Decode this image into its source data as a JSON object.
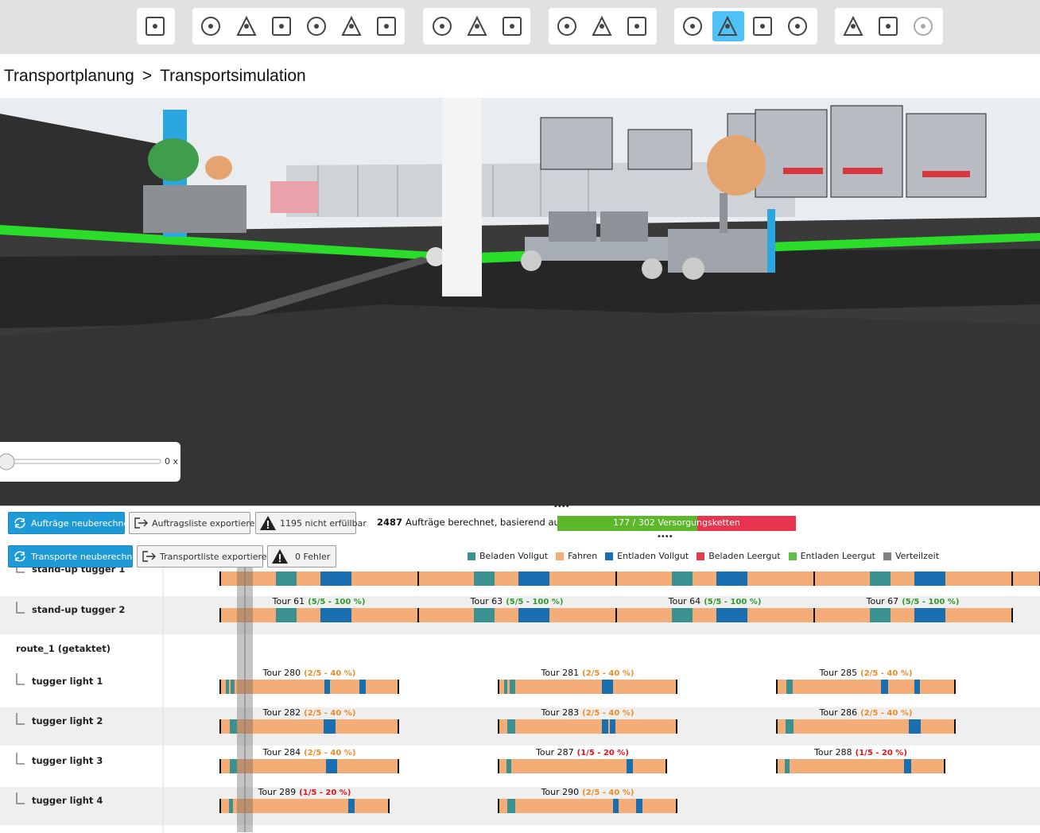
{
  "breadcrumb": [
    "Transportplanung",
    ">",
    "Transportsimulation"
  ],
  "speed_label": "0 x",
  "buttons": {
    "recalc_orders": "Aufträge neuberechnen",
    "export_orders": "Auftragsliste exportieren",
    "unfulfillable": "1195 nicht erfüllbar",
    "recalc_transports": "Transporte neuberechnen",
    "export_transports": "Transportliste exportieren",
    "errors": "0 Fehler"
  },
  "summary": {
    "count": "2487",
    "text": "Aufträge berechnet, basierend auf:",
    "progress": {
      "label": "177 / 302 Versorgungsketten",
      "done": 177,
      "total": 302
    }
  },
  "legend": [
    {
      "name": "Beladen Vollgut",
      "color": "#3a9190"
    },
    {
      "name": "Fahren",
      "color": "#f5ad78"
    },
    {
      "name": "Entladen Vollgut",
      "color": "#1a6fb0"
    },
    {
      "name": "Beladen Leergut",
      "color": "#e23d4a"
    },
    {
      "name": "Entladen Leergut",
      "color": "#5fc14b"
    },
    {
      "name": "Verteilzeit",
      "color": "#7f7f7f"
    }
  ],
  "gantt": {
    "rows_top": [
      {
        "name": "stand-up tugger 1"
      },
      {
        "name": "stand-up tugger 2",
        "tours": [
          {
            "label": "Tour 61",
            "status": "(5/5 - 100 %)",
            "status_color": "#2e9a2e"
          },
          {
            "label": "Tour 63",
            "status": "(5/5 - 100 %)",
            "status_color": "#2e9a2e"
          },
          {
            "label": "Tour 64",
            "status": "(5/5 - 100 %)",
            "status_color": "#2e9a2e"
          },
          {
            "label": "Tour 67",
            "status": "(5/5 - 100 %)",
            "status_color": "#2e9a2e"
          }
        ]
      }
    ],
    "group": "route_1 (getaktet)",
    "rows": [
      {
        "name": "tugger light 1",
        "tours": [
          {
            "label": "Tour 280",
            "status": "(2/5 - 40 %)",
            "status_color": "#f08a24"
          },
          {
            "label": "Tour 281",
            "status": "(2/5 - 40 %)",
            "status_color": "#f08a24"
          },
          {
            "label": "Tour 285",
            "status": "(2/5 - 40 %)",
            "status_color": "#f08a24"
          }
        ]
      },
      {
        "name": "tugger light 2",
        "tours": [
          {
            "label": "Tour 282",
            "status": "(2/5 - 40 %)",
            "status_color": "#f08a24"
          },
          {
            "label": "Tour 283",
            "status": "(2/5 - 40 %)",
            "status_color": "#f08a24"
          },
          {
            "label": "Tour 286",
            "status": "(2/5 - 40 %)",
            "status_color": "#f08a24"
          }
        ]
      },
      {
        "name": "tugger light 3",
        "tours": [
          {
            "label": "Tour 284",
            "status": "(2/5 - 40 %)",
            "status_color": "#f08a24"
          },
          {
            "label": "Tour 287",
            "status": "(1/5 - 20 %)",
            "status_color": "#e0141e"
          },
          {
            "label": "Tour 288",
            "status": "(1/5 - 20 %)",
            "status_color": "#e0141e"
          }
        ]
      },
      {
        "name": "tugger light 4",
        "tours": [
          {
            "label": "Tour 289",
            "status": "(1/5 - 20 %)",
            "status_color": "#e0141e"
          },
          {
            "label": "Tour 290",
            "status": "(2/5 - 40 %)",
            "status_color": "#f08a24"
          }
        ]
      }
    ]
  }
}
